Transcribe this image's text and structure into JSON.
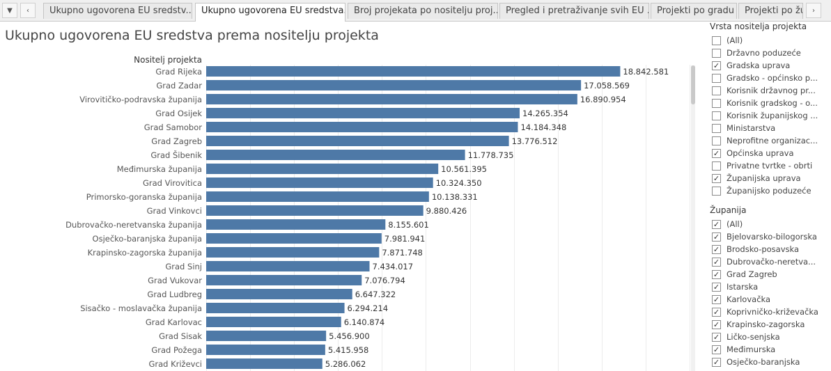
{
  "tabs": [
    {
      "label": "Ukupno ugovorena EU sredstv..."
    },
    {
      "label": "Ukupno ugovorena EU sredstva..."
    },
    {
      "label": "Broj projekata po nositelju proj..."
    },
    {
      "label": "Pregled i pretraživanje svih EU ..."
    },
    {
      "label": "Projekti po gradu"
    },
    {
      "label": "Projekti po župa"
    }
  ],
  "icons": {
    "menu": "dropdown-arrow-icon",
    "prev": "chevron-left-icon",
    "next": "chevron-right-icon"
  },
  "page_title": "Ukupno ugovorena EU sredstva prema nositelju projekta",
  "chart_data": {
    "type": "bar",
    "orientation": "horizontal",
    "ylabel": "Nositelj projekta",
    "bar_color": "#4e79a7",
    "categories": [
      "Grad Rijeka",
      "Grad Zadar",
      "Virovitičko-podravska županija",
      "Grad Osijek",
      "Grad Samobor",
      "Grad Zagreb",
      "Grad Šibenik",
      "Međimurska županija",
      "Grad Virovitica",
      "Primorsko-goranska županija",
      "Grad Vinkovci",
      "Dubrovačko-neretvanska županija",
      "Osječko-baranjska županija",
      "Krapinsko-zagorska županija",
      "Grad Sinj",
      "Grad Vukovar",
      "Grad Ludbreg",
      "Sisačko - moslavačka županija",
      "Grad Karlovac",
      "Grad Sisak",
      "Grad Požega",
      "Grad Križevci"
    ],
    "values": [
      18842581,
      17058569,
      16890954,
      14265354,
      14184348,
      13776512,
      11778735,
      10561395,
      10324350,
      10138331,
      9880426,
      8155601,
      7981941,
      7871748,
      7434017,
      7076794,
      6647322,
      6294214,
      6140874,
      5456900,
      5415958,
      5286062
    ],
    "value_labels": [
      "18.842.581",
      "17.058.569",
      "16.890.954",
      "14.265.354",
      "14.184.348",
      "13.776.512",
      "11.778.735",
      "10.561.395",
      "10.324.350",
      "10.138.331",
      "9.880.426",
      "8.155.601",
      "7.981.941",
      "7.871.748",
      "7.434.017",
      "7.076.794",
      "6.647.322",
      "6.294.214",
      "6.140.874",
      "5.456.900",
      "5.415.958",
      "5.286.062"
    ],
    "xlim": [
      0,
      22000000
    ],
    "grid": true
  },
  "filters": [
    {
      "title": "Vrsta nositelja projekta",
      "items": [
        {
          "label": "(All)",
          "checked": false
        },
        {
          "label": "Državno poduzeće",
          "checked": false
        },
        {
          "label": "Gradska uprava",
          "checked": true
        },
        {
          "label": "Gradsko - općinsko p...",
          "checked": false
        },
        {
          "label": "Korisnik državnog pr...",
          "checked": false
        },
        {
          "label": "Korisnik gradskog - o...",
          "checked": false
        },
        {
          "label": "Korisnik županijskog ...",
          "checked": false
        },
        {
          "label": "Ministarstva",
          "checked": false
        },
        {
          "label": "Neprofitne organizac...",
          "checked": false
        },
        {
          "label": "Općinska uprava",
          "checked": true
        },
        {
          "label": "Privatne tvrtke - obrti",
          "checked": false
        },
        {
          "label": "Županijska uprava",
          "checked": true
        },
        {
          "label": "Županijsko poduzeće",
          "checked": false
        }
      ]
    },
    {
      "title": "Županija",
      "items": [
        {
          "label": "(All)",
          "checked": true
        },
        {
          "label": "Bjelovarsko-bilogorska",
          "checked": true
        },
        {
          "label": "Brodsko-posavska",
          "checked": true
        },
        {
          "label": "Dubrovačko-neretva...",
          "checked": true
        },
        {
          "label": "Grad Zagreb",
          "checked": true
        },
        {
          "label": "Istarska",
          "checked": true
        },
        {
          "label": "Karlovačka",
          "checked": true
        },
        {
          "label": "Koprivničko-križevačka",
          "checked": true
        },
        {
          "label": "Krapinsko-zagorska",
          "checked": true
        },
        {
          "label": "Ličko-senjska",
          "checked": true
        },
        {
          "label": "Međimurska",
          "checked": true
        },
        {
          "label": "Osječko-baranjska",
          "checked": true
        }
      ]
    }
  ]
}
